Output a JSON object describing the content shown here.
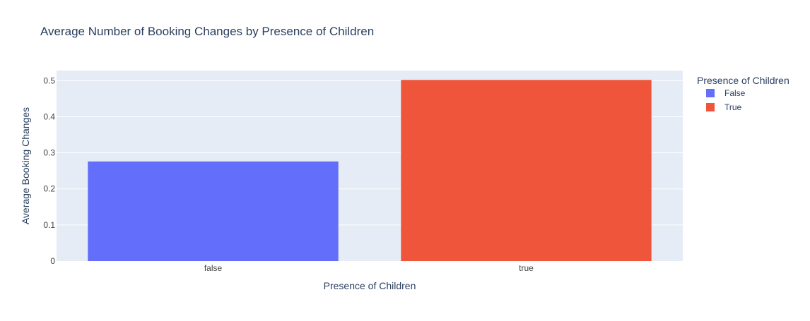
{
  "chart_data": {
    "type": "bar",
    "title": "Average Number of Booking Changes by Presence of Children",
    "xlabel": "Presence of Children",
    "ylabel": "Average Booking Changes",
    "categories": [
      "false",
      "true"
    ],
    "series": [
      {
        "name": "False",
        "category": "false",
        "value": 0.276,
        "color": "#636efa"
      },
      {
        "name": "True",
        "category": "true",
        "value": 0.502,
        "color": "#ef553b"
      }
    ],
    "ylim": [
      0,
      0.528
    ],
    "yticks": [
      0,
      0.1,
      0.2,
      0.3,
      0.4,
      0.5
    ],
    "ytick_labels": [
      "0",
      "0.1",
      "0.2",
      "0.3",
      "0.4",
      "0.5"
    ],
    "grid": true,
    "legend": {
      "title": "Presence of Children",
      "placement": "top-right"
    }
  },
  "colors": {
    "plot_bg": "#e5ecf6",
    "grid": "#ffffff",
    "text": "#2a3f5f",
    "tick_text": "#444444"
  }
}
